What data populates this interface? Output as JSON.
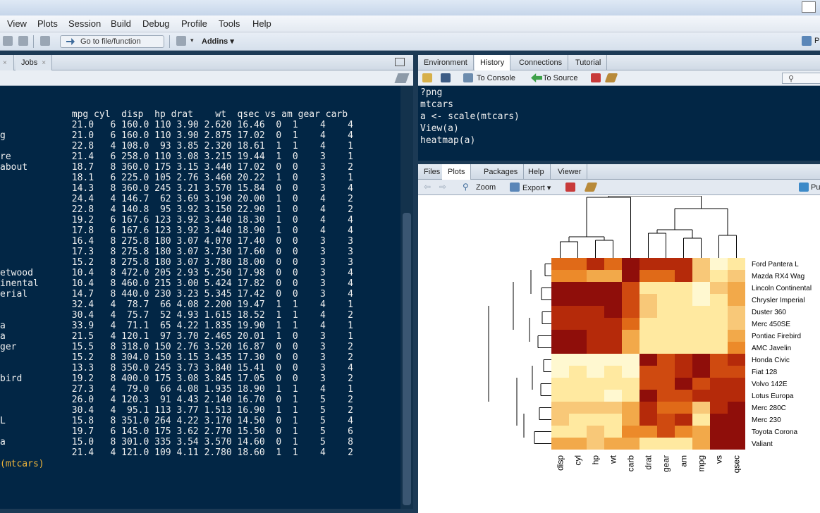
{
  "menu": [
    "View",
    "Plots",
    "Session",
    "Build",
    "Debug",
    "Profile",
    "Tools",
    "Help"
  ],
  "toolbar": {
    "goto_placeholder": "Go to file/function",
    "addins": "Addins",
    "right_label": "P"
  },
  "left_tabs": [
    "Jobs"
  ],
  "console": {
    "lines": [
      "             mpg cyl  disp  hp drat    wt  qsec vs am gear carb",
      "             21.0   6 160.0 110 3.90 2.620 16.46  0  1    4    4",
      "g            21.0   6 160.0 110 3.90 2.875 17.02  0  1    4    4",
      "             22.8   4 108.0  93 3.85 2.320 18.61  1  1    4    1",
      "re           21.4   6 258.0 110 3.08 3.215 19.44  1  0    3    1",
      "about        18.7   8 360.0 175 3.15 3.440 17.02  0  0    3    2",
      "             18.1   6 225.0 105 2.76 3.460 20.22  1  0    3    1",
      "             14.3   8 360.0 245 3.21 3.570 15.84  0  0    3    4",
      "             24.4   4 146.7  62 3.69 3.190 20.00  1  0    4    2",
      "             22.8   4 140.8  95 3.92 3.150 22.90  1  0    4    2",
      "             19.2   6 167.6 123 3.92 3.440 18.30  1  0    4    4",
      "             17.8   6 167.6 123 3.92 3.440 18.90  1  0    4    4",
      "             16.4   8 275.8 180 3.07 4.070 17.40  0  0    3    3",
      "             17.3   8 275.8 180 3.07 3.730 17.60  0  0    3    3",
      "             15.2   8 275.8 180 3.07 3.780 18.00  0  0    3    3",
      "etwood       10.4   8 472.0 205 2.93 5.250 17.98  0  0    3    4",
      "inental      10.4   8 460.0 215 3.00 5.424 17.82  0  0    3    4",
      "erial        14.7   8 440.0 230 3.23 5.345 17.42  0  0    3    4",
      "             32.4   4  78.7  66 4.08 2.200 19.47  1  1    4    1",
      "             30.4   4  75.7  52 4.93 1.615 18.52  1  1    4    2",
      "a            33.9   4  71.1  65 4.22 1.835 19.90  1  1    4    1",
      "a            21.5   4 120.1  97 3.70 2.465 20.01  1  0    3    1",
      "ger          15.5   8 318.0 150 2.76 3.520 16.87  0  0    3    2",
      "             15.2   8 304.0 150 3.15 3.435 17.30  0  0    3    2",
      "             13.3   8 350.0 245 3.73 3.840 15.41  0  0    3    4",
      "bird         19.2   8 400.0 175 3.08 3.845 17.05  0  0    3    2",
      "             27.3   4  79.0  66 4.08 1.935 18.90  1  1    4    1",
      "             26.0   4 120.3  91 4.43 2.140 16.70  0  1    5    2",
      "             30.4   4  95.1 113 3.77 1.513 16.90  1  1    5    2",
      "L            15.8   8 351.0 264 4.22 3.170 14.50  0  1    5    4",
      "             19.7   6 145.0 175 3.62 2.770 15.50  0  1    5    6",
      "a            15.0   8 301.0 335 3.54 3.570 14.60  0  1    5    8",
      "             21.4   4 121.0 109 4.11 2.780 18.60  1  1    4    2"
    ],
    "last_command": "(mtcars)"
  },
  "env_tabs": [
    "Environment",
    "History",
    "Connections",
    "Tutorial"
  ],
  "env_active": "History",
  "history_tools": {
    "to_console": "To Console",
    "to_source": "To Source"
  },
  "history": [
    "?png",
    "mtcars",
    "a <- scale(mtcars)",
    "View(a)",
    "heatmap(a)"
  ],
  "plot_tabs": [
    "Files",
    "Plots",
    "Packages",
    "Help",
    "Viewer"
  ],
  "plot_active": "Plots",
  "plot_tools": {
    "zoom": "Zoom",
    "export": "Export",
    "publish": "Pu"
  },
  "chart_data": {
    "type": "heatmap",
    "row_labels": [
      "Ford Pantera L",
      "Mazda RX4 Wag",
      "Lincoln Continental",
      "Chrysler Imperial",
      "Duster 360",
      "Merc 450SE",
      "Pontiac Firebird",
      "AMC Javelin",
      "Honda Civic",
      "Fiat 128",
      "Volvo 142E",
      "Lotus Europa",
      "Merc 280C",
      "Merc 230",
      "Toyota Corona",
      "Valiant"
    ],
    "col_labels": [
      "disp",
      "cyl",
      "hp",
      "wt",
      "carb",
      "drat",
      "gear",
      "am",
      "mpg",
      "vs",
      "qsec"
    ],
    "color_scale": [
      "#fff8d0",
      "#ffe9a0",
      "#f8c878",
      "#f2a94a",
      "#ec8a2a",
      "#e06a18",
      "#cf4a10",
      "#b52a0a",
      "#8f0e0a"
    ],
    "values": [
      [
        5,
        5,
        7,
        5,
        9,
        7,
        7,
        7,
        2,
        0,
        1
      ],
      [
        4,
        4,
        3,
        3,
        8,
        5,
        5,
        7,
        2,
        1,
        2
      ],
      [
        8,
        8,
        8,
        9,
        6,
        1,
        1,
        1,
        0,
        2,
        3
      ],
      [
        8,
        8,
        8,
        8,
        6,
        2,
        1,
        1,
        0,
        1,
        3
      ],
      [
        7,
        7,
        7,
        8,
        6,
        2,
        1,
        1,
        1,
        1,
        2
      ],
      [
        7,
        7,
        7,
        7,
        5,
        1,
        1,
        1,
        1,
        1,
        2
      ],
      [
        8,
        9,
        7,
        7,
        3,
        1,
        1,
        1,
        1,
        1,
        3
      ],
      [
        8,
        9,
        7,
        7,
        3,
        1,
        1,
        1,
        1,
        1,
        4
      ],
      [
        0,
        0,
        0,
        0,
        0,
        8,
        6,
        7,
        8,
        6,
        7
      ],
      [
        0,
        1,
        0,
        1,
        0,
        6,
        6,
        7,
        8,
        6,
        6
      ],
      [
        1,
        1,
        1,
        1,
        1,
        6,
        6,
        8,
        6,
        7,
        7
      ],
      [
        1,
        1,
        1,
        0,
        1,
        8,
        6,
        6,
        7,
        7,
        7
      ],
      [
        2,
        2,
        2,
        2,
        3,
        7,
        5,
        5,
        2,
        7,
        8
      ],
      [
        2,
        1,
        1,
        1,
        3,
        7,
        6,
        7,
        1,
        8,
        9
      ],
      [
        1,
        1,
        2,
        1,
        4,
        4,
        6,
        4,
        3,
        8,
        9
      ],
      [
        3,
        3,
        2,
        3,
        3,
        1,
        1,
        1,
        3,
        8,
        9
      ]
    ]
  }
}
